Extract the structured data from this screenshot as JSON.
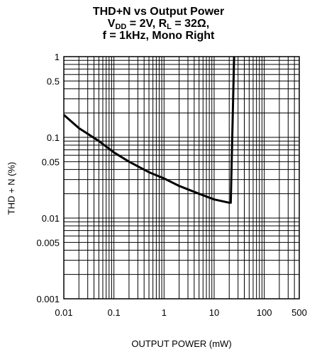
{
  "chart_data": {
    "type": "line",
    "title_line1": "THD+N vs Output Power",
    "title_line2": {
      "prefix": "V",
      "sub1": "DD",
      "mid": " = 2V, R",
      "sub2": "L",
      "suffix": " = 32Ω,"
    },
    "title_line3": "f = 1kHz, Mono Right",
    "xlabel": "OUTPUT POWER (mW)",
    "ylabel": "THD + N (%)",
    "x_scale": "log",
    "y_scale": "log",
    "xlim": [
      0.01,
      500
    ],
    "ylim": [
      0.001,
      1
    ],
    "x_ticks": [
      {
        "value": 0.01,
        "label": "0.01"
      },
      {
        "value": 0.1,
        "label": "0.1"
      },
      {
        "value": 1,
        "label": "1"
      },
      {
        "value": 10,
        "label": "10"
      },
      {
        "value": 100,
        "label": "100"
      },
      {
        "value": 500,
        "label": "500"
      }
    ],
    "y_ticks": [
      {
        "value": 1,
        "label": "1"
      },
      {
        "value": 0.5,
        "label": "0.5"
      },
      {
        "value": 0.1,
        "label": "0.1"
      },
      {
        "value": 0.05,
        "label": "0.05"
      },
      {
        "value": 0.01,
        "label": "0.01"
      },
      {
        "value": 0.005,
        "label": "0.005"
      },
      {
        "value": 0.001,
        "label": "0.001"
      }
    ],
    "grid": true,
    "series": [
      {
        "x": [
          0.01,
          0.02,
          0.05,
          0.1,
          0.2,
          0.5,
          1,
          2,
          5,
          10,
          20,
          21.5,
          25
        ],
        "y": [
          0.19,
          0.13,
          0.09,
          0.065,
          0.05,
          0.037,
          0.031,
          0.025,
          0.02,
          0.017,
          0.0155,
          0.0155,
          1.0
        ]
      }
    ],
    "line_color": "#000000"
  }
}
